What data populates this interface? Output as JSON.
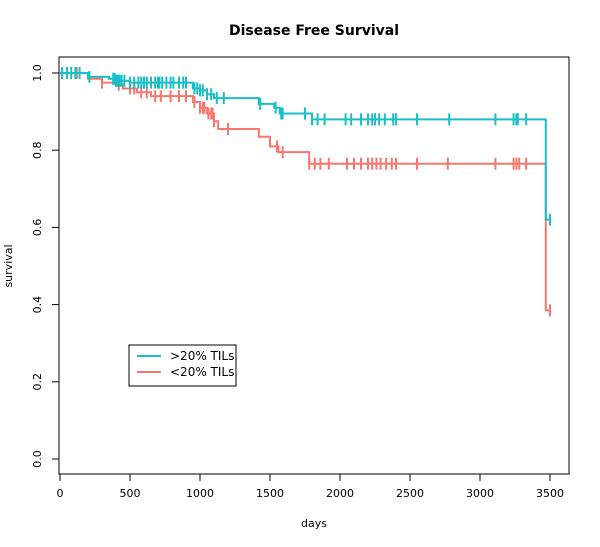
{
  "chart_data": {
    "type": "line",
    "title": "Disease Free Survival",
    "xlabel": "days",
    "ylabel": "survival",
    "xlim": [
      0,
      3600
    ],
    "ylim": [
      0,
      1
    ],
    "x_ticks": [
      0,
      500,
      1000,
      1500,
      2000,
      2500,
      3000,
      3500
    ],
    "y_ticks": [
      0.0,
      0.2,
      0.4,
      0.6,
      0.8,
      1.0
    ],
    "x_tick_labels": [
      "0",
      "500",
      "1000",
      "1500",
      "2000",
      "2500",
      "3000",
      "3500"
    ],
    "y_tick_labels": [
      "0.0",
      "0.2",
      "0.4",
      "0.6",
      "0.8",
      "1.0"
    ],
    "grid": false,
    "legend_position": "lower-left",
    "series": [
      {
        "name": ">20% TILs",
        "color": "#1ABEC6",
        "steps": [
          [
            0,
            1.0
          ],
          [
            200,
            0.99
          ],
          [
            350,
            0.985
          ],
          [
            400,
            0.98
          ],
          [
            500,
            0.975
          ],
          [
            950,
            0.96
          ],
          [
            1000,
            0.955
          ],
          [
            1050,
            0.945
          ],
          [
            1100,
            0.935
          ],
          [
            1420,
            0.92
          ],
          [
            1530,
            0.91
          ],
          [
            1570,
            0.895
          ],
          [
            1800,
            0.88
          ],
          [
            3470,
            0.62
          ],
          [
            3500,
            0.62
          ]
        ],
        "censor": [
          15,
          50,
          80,
          110,
          140,
          210,
          380,
          390,
          400,
          405,
          415,
          425,
          440,
          460,
          500,
          530,
          560,
          580,
          600,
          620,
          650,
          680,
          700,
          710,
          730,
          760,
          790,
          810,
          850,
          880,
          900,
          960,
          980,
          1000,
          1020,
          1050,
          1080,
          1120,
          1170,
          1430,
          1540,
          1580,
          1590,
          1750,
          1800,
          1840,
          1890,
          2040,
          2080,
          2150,
          2200,
          2230,
          2250,
          2280,
          2320,
          2380,
          2400,
          2550,
          2780,
          3110,
          3240,
          3260,
          3270,
          3330,
          3500
        ]
      },
      {
        "name": "<20% TILs",
        "color": "#F8766D",
        "steps": [
          [
            0,
            1.0
          ],
          [
            200,
            0.985
          ],
          [
            300,
            0.975
          ],
          [
            400,
            0.97
          ],
          [
            450,
            0.96
          ],
          [
            550,
            0.95
          ],
          [
            650,
            0.94
          ],
          [
            950,
            0.925
          ],
          [
            1000,
            0.91
          ],
          [
            1050,
            0.895
          ],
          [
            1100,
            0.875
          ],
          [
            1130,
            0.855
          ],
          [
            1420,
            0.835
          ],
          [
            1500,
            0.81
          ],
          [
            1560,
            0.795
          ],
          [
            1780,
            0.765
          ],
          [
            3470,
            0.385
          ],
          [
            3500,
            0.385
          ]
        ],
        "censor": [
          120,
          300,
          420,
          500,
          530,
          580,
          620,
          680,
          720,
          790,
          850,
          900,
          960,
          1000,
          1020,
          1030,
          1060,
          1080,
          1090,
          1100,
          1200,
          1550,
          1590,
          1780,
          1820,
          1860,
          1920,
          2050,
          2100,
          2150,
          2200,
          2230,
          2260,
          2290,
          2330,
          2370,
          2400,
          2550,
          2770,
          3110,
          3240,
          3260,
          3280,
          3330,
          3500
        ]
      }
    ]
  }
}
